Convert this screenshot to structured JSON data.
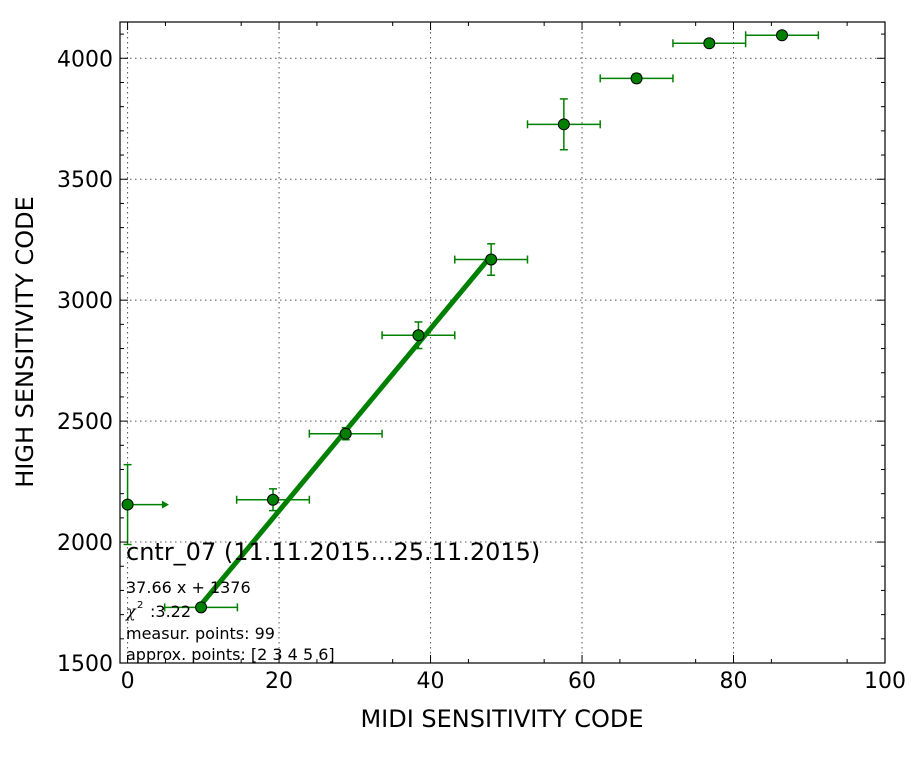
{
  "chart_data": {
    "type": "scatter",
    "xlabel": "MIDI SENSITIVITY CODE",
    "ylabel": "HIGH SENSITIVITY CODE",
    "xlim": [
      -1,
      100
    ],
    "ylim": [
      1500,
      4150
    ],
    "xticks": [
      0,
      20,
      40,
      60,
      80,
      100
    ],
    "yticks": [
      1500,
      2000,
      2500,
      3000,
      3500,
      4000
    ],
    "grid": true,
    "colors": {
      "series": "#008000",
      "marker_edge": "#000000",
      "fit": "#008000"
    },
    "points": [
      {
        "x": 0.0,
        "y": 2155,
        "xerr": [
          0,
          4.8
        ],
        "yerr": 165,
        "arrow": "right"
      },
      {
        "x": 9.7,
        "y": 1730,
        "xerr": [
          4.8,
          4.8
        ],
        "yerr": 12
      },
      {
        "x": 19.2,
        "y": 2175,
        "xerr": [
          4.8,
          4.8
        ],
        "yerr": 45
      },
      {
        "x": 28.8,
        "y": 2448,
        "xerr": [
          4.8,
          4.8
        ],
        "yerr": 25
      },
      {
        "x": 38.4,
        "y": 2855,
        "xerr": [
          4.8,
          4.8
        ],
        "yerr": 55
      },
      {
        "x": 48.0,
        "y": 3168,
        "xerr": [
          4.8,
          4.8
        ],
        "yerr": 65
      },
      {
        "x": 57.6,
        "y": 3727,
        "xerr": [
          4.8,
          4.8
        ],
        "yerr": 105
      },
      {
        "x": 67.2,
        "y": 3917,
        "xerr": [
          4.8,
          4.8
        ],
        "yerr": 18
      },
      {
        "x": 76.8,
        "y": 4062,
        "xerr": [
          4.8,
          4.8
        ],
        "yerr": 10
      },
      {
        "x": 86.4,
        "y": 4095,
        "xerr": [
          4.8,
          4.8
        ],
        "yerr": 8
      }
    ],
    "fit": {
      "slope": 37.66,
      "intercept": 1376,
      "x_range": [
        9.7,
        48.0
      ]
    },
    "annotations": {
      "title": "cntr_07 (11.11.2015...25.11.2015)",
      "equation": "37.66 x + 1376",
      "chi_symbol": "χ",
      "chi_exp": "2",
      "chi_value": ":3.22",
      "measur": "measur. points: 99",
      "approx": "approx. points: [2 3 4 5 6]"
    }
  }
}
